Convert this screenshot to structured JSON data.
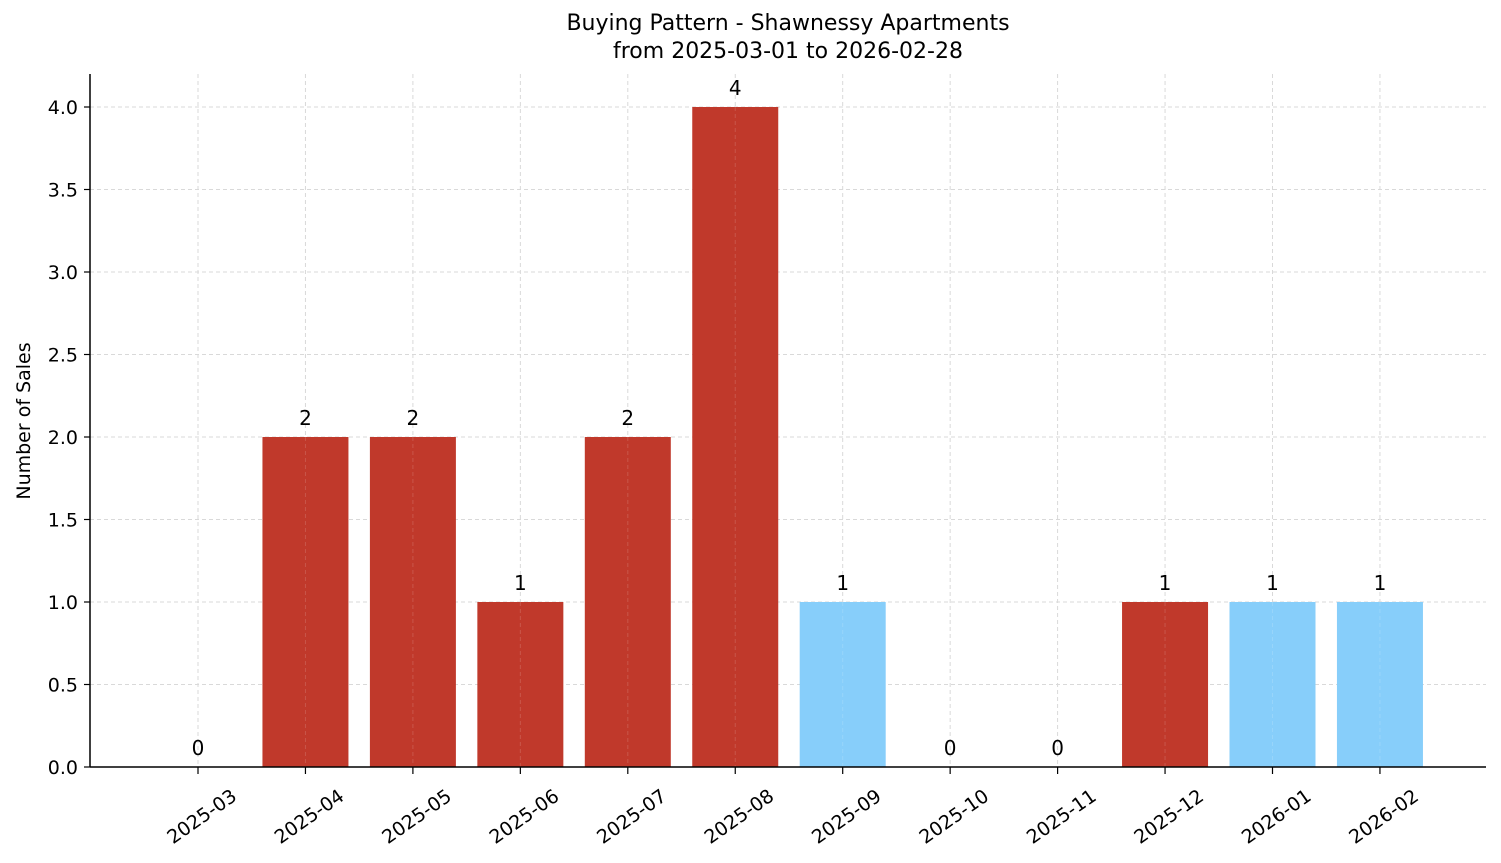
{
  "chart_data": {
    "type": "bar",
    "title": "Buying Pattern - Shawnessy Apartments",
    "subtitle": "from 2025-03-01 to 2026-02-28",
    "xlabel": "",
    "ylabel": "Number of Sales",
    "ylim": [
      0,
      4.2
    ],
    "yticks": [
      "0.0",
      "0.5",
      "1.0",
      "1.5",
      "2.0",
      "2.5",
      "3.0",
      "3.5",
      "4.0"
    ],
    "grid": true,
    "legend": null,
    "categories": [
      "2025-03",
      "2025-04",
      "2025-05",
      "2025-06",
      "2025-07",
      "2025-08",
      "2025-09",
      "2025-10",
      "2025-11",
      "2025-12",
      "2026-01",
      "2026-02"
    ],
    "values": [
      0,
      2,
      2,
      1,
      2,
      4,
      1,
      0,
      0,
      1,
      1,
      1
    ],
    "bar_colors": [
      "#C0392B",
      "#C0392B",
      "#C0392B",
      "#C0392B",
      "#C0392B",
      "#C0392B",
      "#87CEFA",
      "#87CEFA",
      "#87CEFA",
      "#C0392B",
      "#87CEFA",
      "#87CEFA"
    ],
    "data_labels": [
      "0",
      "2",
      "2",
      "1",
      "2",
      "4",
      "1",
      "0",
      "0",
      "1",
      "1",
      "1"
    ]
  },
  "colors": {
    "primary_bar": "#C0392B",
    "secondary_bar": "#87CEFA",
    "grid": "#d9d9d9",
    "axis": "#000000"
  }
}
